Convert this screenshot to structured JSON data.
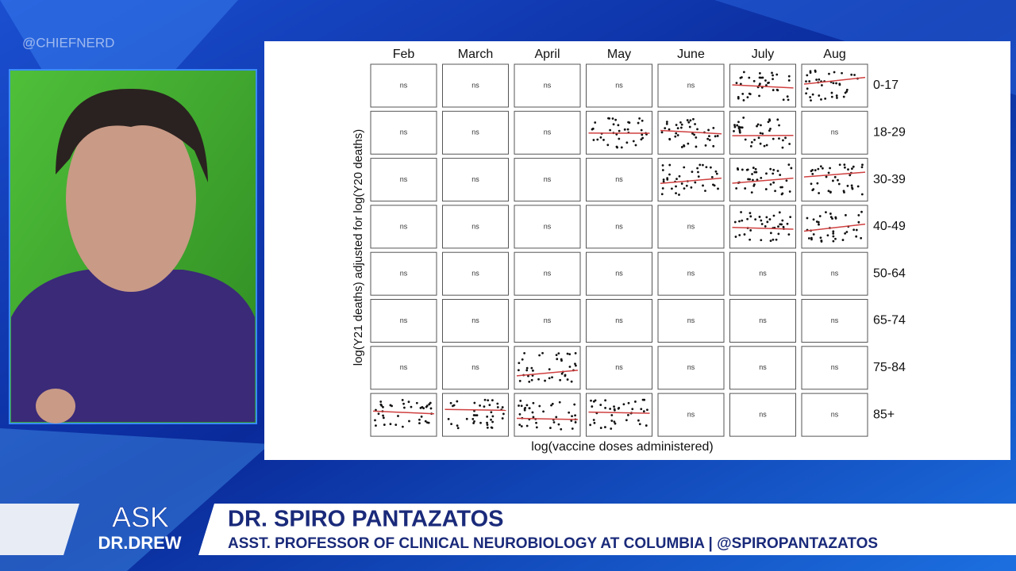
{
  "watermark": "@CHIEFNERD",
  "figure": {
    "y_label": "log(Y21 deaths) adjusted for log(Y20 deaths)",
    "x_label": "log(vaccine doses administered)",
    "columns": [
      "Feb",
      "March",
      "April",
      "May",
      "June",
      "July",
      "Aug"
    ],
    "rows": [
      "0-17",
      "18-29",
      "30-39",
      "40-49",
      "50-64",
      "65-74",
      "75-84",
      "85+"
    ],
    "cells": [
      [
        "ns",
        "ns",
        "ns",
        "ns",
        "ns",
        null,
        null
      ],
      [
        "ns",
        "ns",
        "ns",
        null,
        null,
        null,
        "ns"
      ],
      [
        "ns",
        "ns",
        "ns",
        "ns",
        null,
        null,
        null
      ],
      [
        "ns",
        "ns",
        "ns",
        "ns",
        "ns",
        null,
        null
      ],
      [
        "ns",
        "ns",
        "ns",
        "ns",
        "ns",
        "ns",
        "ns"
      ],
      [
        "ns",
        "ns",
        "ns",
        "ns",
        "ns",
        "ns",
        "ns"
      ],
      [
        "ns",
        "ns",
        null,
        "ns",
        "ns",
        "ns",
        "ns"
      ],
      [
        null,
        null,
        null,
        null,
        "ns",
        "ns",
        "ns"
      ]
    ]
  },
  "lower_third": {
    "logo_top": "ASK",
    "logo_bottom": "DR.DREW",
    "name": "DR. SPIRO PANTAZATOS",
    "title": "ASST. PROFESSOR OF CLINICAL NEUROBIOLOGY AT COLUMBIA | @SPIROPANTAZATOS"
  }
}
